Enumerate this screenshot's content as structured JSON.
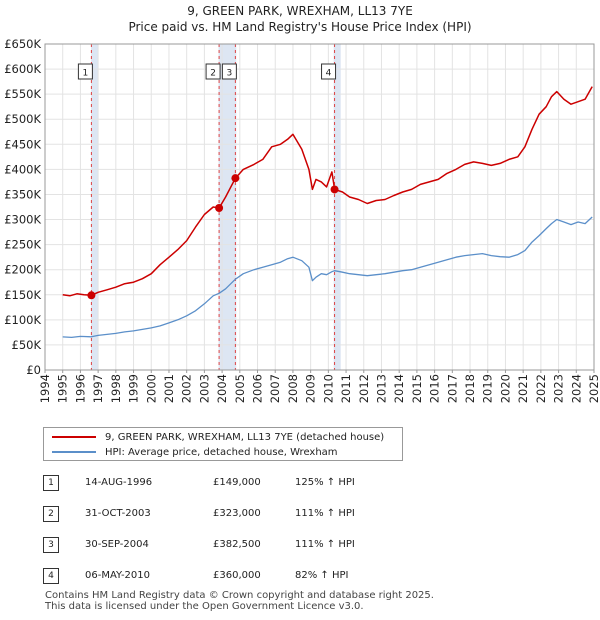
{
  "title": "9, GREEN PARK, WREXHAM, LL13 7YE",
  "subtitle": "Price paid vs. HM Land Registry's House Price Index (HPI)",
  "colors": {
    "property": "#cc0000",
    "hpi": "#5b8fc9",
    "band": "#dde6f3",
    "marker_line": "#dd4444"
  },
  "legend": {
    "property": "9, GREEN PARK, WREXHAM, LL13 7YE (detached house)",
    "hpi": "HPI: Average price, detached house, Wrexham"
  },
  "transactions": [
    {
      "num": "1",
      "date": "14-AUG-1996",
      "price": "£149,000",
      "hpi": "125% ↑ HPI"
    },
    {
      "num": "2",
      "date": "31-OCT-2003",
      "price": "£323,000",
      "hpi": "111% ↑ HPI"
    },
    {
      "num": "3",
      "date": "30-SEP-2004",
      "price": "£382,500",
      "hpi": "111% ↑ HPI"
    },
    {
      "num": "4",
      "date": "06-MAY-2010",
      "price": "£360,000",
      "hpi": "82% ↑ HPI"
    }
  ],
  "footer": {
    "line1": "Contains HM Land Registry data © Crown copyright and database right 2025.",
    "line2": "This data is licensed under the Open Government Licence v3.0."
  },
  "chart_data": {
    "type": "line",
    "title": "9, GREEN PARK, WREXHAM, LL13 7YE",
    "subtitle": "Price paid vs. HM Land Registry's House Price Index (HPI)",
    "xlim": [
      1994,
      2025
    ],
    "ylim": [
      0,
      650000
    ],
    "x_ticks": [
      1994,
      1995,
      1996,
      1997,
      1998,
      1999,
      2000,
      2001,
      2002,
      2003,
      2004,
      2005,
      2006,
      2007,
      2008,
      2009,
      2010,
      2011,
      2012,
      2013,
      2014,
      2015,
      2016,
      2017,
      2018,
      2019,
      2020,
      2021,
      2022,
      2023,
      2024,
      2025
    ],
    "y_ticks": [
      {
        "value": 0,
        "label": "£0"
      },
      {
        "value": 50000,
        "label": "£50K"
      },
      {
        "value": 100000,
        "label": "£100K"
      },
      {
        "value": 150000,
        "label": "£150K"
      },
      {
        "value": 200000,
        "label": "£200K"
      },
      {
        "value": 250000,
        "label": "£250K"
      },
      {
        "value": 300000,
        "label": "£300K"
      },
      {
        "value": 350000,
        "label": "£350K"
      },
      {
        "value": 400000,
        "label": "£400K"
      },
      {
        "value": 450000,
        "label": "£450K"
      },
      {
        "value": 500000,
        "label": "£500K"
      },
      {
        "value": 550000,
        "label": "£550K"
      },
      {
        "value": 600000,
        "label": "£600K"
      },
      {
        "value": 650000,
        "label": "£650K"
      }
    ],
    "grid": true,
    "shaded_ranges": [
      [
        1996.6,
        1997.0
      ],
      [
        2003.8,
        2004.8
      ],
      [
        2010.3,
        2010.7
      ]
    ],
    "marker_years": [
      1996.62,
      2003.83,
      2004.75,
      2010.35
    ],
    "series": [
      {
        "name": "9, GREEN PARK, WREXHAM, LL13 7YE (detached house)",
        "key": "property",
        "x": [
          1995.0,
          1995.4,
          1995.8,
          1996.2,
          1996.62,
          1997.0,
          1997.5,
          1998.0,
          1998.5,
          1999.0,
          1999.5,
          2000.0,
          2000.5,
          2001.0,
          2001.5,
          2002.0,
          2002.5,
          2003.0,
          2003.5,
          2003.83,
          2004.2,
          2004.75,
          2005.2,
          2005.8,
          2006.3,
          2006.8,
          2007.3,
          2007.7,
          2008.0,
          2008.5,
          2008.9,
          2009.1,
          2009.3,
          2009.6,
          2009.9,
          2010.2,
          2010.35,
          2010.8,
          2011.2,
          2011.7,
          2012.2,
          2012.7,
          2013.2,
          2013.7,
          2014.2,
          2014.7,
          2015.2,
          2015.7,
          2016.2,
          2016.7,
          2017.2,
          2017.7,
          2018.2,
          2018.7,
          2019.2,
          2019.7,
          2020.2,
          2020.7,
          2021.1,
          2021.5,
          2021.9,
          2022.3,
          2022.6,
          2022.9,
          2023.3,
          2023.7,
          2024.1,
          2024.5,
          2024.9
        ],
        "values": [
          150000,
          148000,
          152000,
          150000,
          149000,
          155000,
          160000,
          165000,
          172000,
          175000,
          182000,
          192000,
          210000,
          225000,
          240000,
          258000,
          285000,
          310000,
          325000,
          323000,
          345000,
          382500,
          400000,
          410000,
          420000,
          445000,
          450000,
          460000,
          470000,
          440000,
          400000,
          360000,
          380000,
          375000,
          365000,
          395000,
          360000,
          355000,
          345000,
          340000,
          332000,
          338000,
          340000,
          348000,
          355000,
          360000,
          370000,
          375000,
          380000,
          392000,
          400000,
          410000,
          415000,
          412000,
          408000,
          412000,
          420000,
          425000,
          445000,
          480000,
          510000,
          525000,
          545000,
          555000,
          540000,
          530000,
          535000,
          540000,
          565000
        ]
      },
      {
        "name": "HPI: Average price, detached house, Wrexham",
        "key": "hpi",
        "x": [
          1995.0,
          1995.5,
          1996.0,
          1996.62,
          1997.0,
          1997.5,
          1998.0,
          1998.5,
          1999.0,
          1999.5,
          2000.0,
          2000.5,
          2001.0,
          2001.5,
          2002.0,
          2002.5,
          2003.0,
          2003.5,
          2003.83,
          2004.2,
          2004.75,
          2005.2,
          2005.8,
          2006.3,
          2006.8,
          2007.3,
          2007.7,
          2008.0,
          2008.5,
          2008.9,
          2009.1,
          2009.3,
          2009.6,
          2009.9,
          2010.2,
          2010.35,
          2010.8,
          2011.2,
          2011.7,
          2012.2,
          2012.7,
          2013.2,
          2013.7,
          2014.2,
          2014.7,
          2015.2,
          2015.7,
          2016.2,
          2016.7,
          2017.2,
          2017.7,
          2018.2,
          2018.7,
          2019.2,
          2019.7,
          2020.2,
          2020.7,
          2021.1,
          2021.5,
          2021.9,
          2022.3,
          2022.6,
          2022.9,
          2023.3,
          2023.7,
          2024.1,
          2024.5,
          2024.9
        ],
        "values": [
          66000,
          65000,
          67000,
          66200,
          69000,
          71000,
          73000,
          76000,
          78000,
          81000,
          84000,
          88000,
          94000,
          100000,
          108000,
          118000,
          132000,
          148000,
          153000,
          162000,
          181000,
          192000,
          200000,
          205000,
          210000,
          215000,
          222000,
          225000,
          218000,
          205000,
          178000,
          185000,
          192000,
          190000,
          196000,
          198000,
          195000,
          192000,
          190000,
          188000,
          190000,
          192000,
          195000,
          198000,
          200000,
          205000,
          210000,
          215000,
          220000,
          225000,
          228000,
          230000,
          232000,
          228000,
          226000,
          225000,
          230000,
          238000,
          255000,
          268000,
          282000,
          292000,
          300000,
          295000,
          290000,
          295000,
          292000,
          305000
        ]
      }
    ]
  }
}
